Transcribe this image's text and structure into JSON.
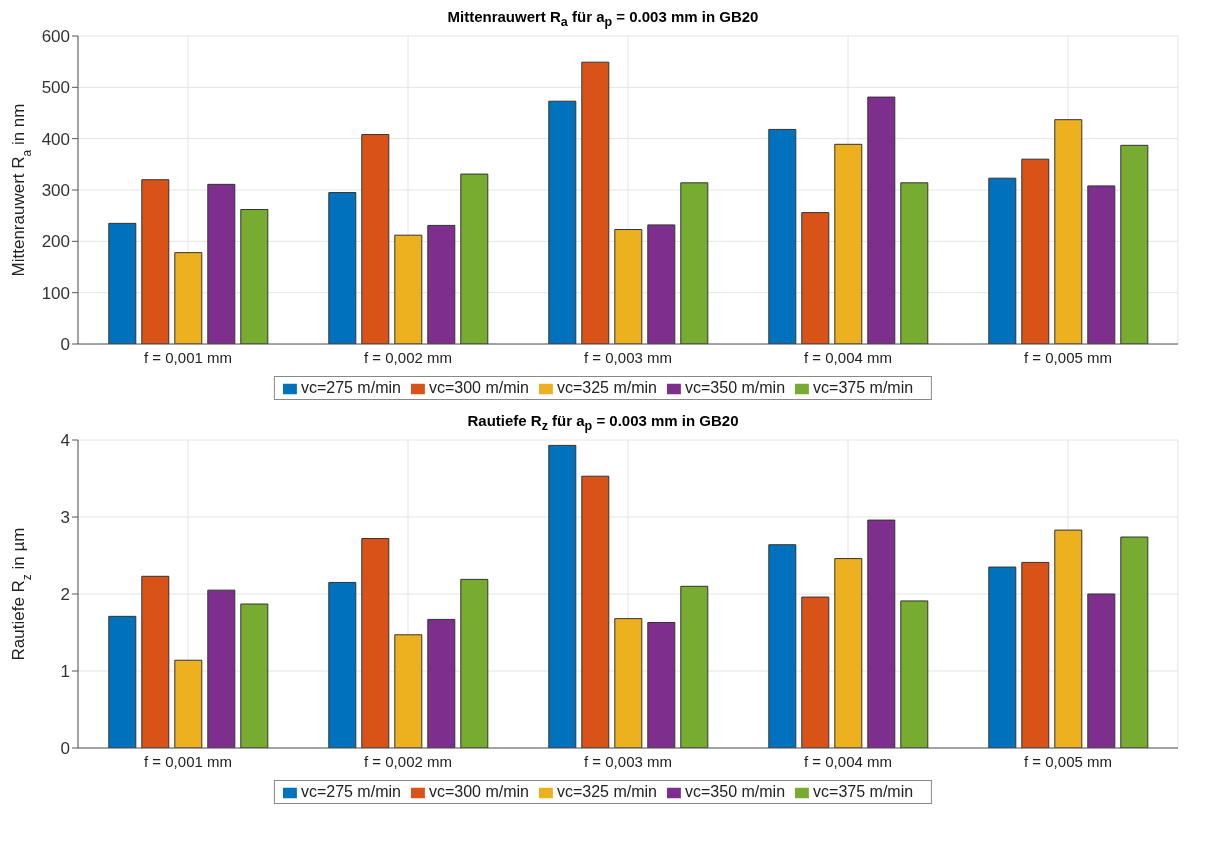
{
  "chart_data": [
    {
      "type": "bar",
      "title": "Mittenrauwert R$_{a}$ für a$_{p}$ = 0.003 mm in GB20",
      "ylabel": "Mittenrauwert R$_{a}$ in nm",
      "categories": [
        "f = 0,001 mm",
        "f = 0,002 mm",
        "f = 0,003 mm",
        "f = 0,004 mm",
        "f = 0,005 mm"
      ],
      "ylim": [
        0,
        600
      ],
      "yticks": [
        0,
        100,
        200,
        300,
        400,
        500,
        600
      ],
      "grid": true,
      "legend": "bottom",
      "series": [
        {
          "name": "vc=275 m/min",
          "color": "#0072bd",
          "values": [
            235,
            295,
            473,
            418,
            323
          ]
        },
        {
          "name": "vc=300 m/min",
          "color": "#d95319",
          "values": [
            320,
            408,
            549,
            256,
            360
          ]
        },
        {
          "name": "vc=325 m/min",
          "color": "#edb120",
          "values": [
            178,
            212,
            223,
            389,
            437
          ]
        },
        {
          "name": "vc=350 m/min",
          "color": "#7e2f8e",
          "values": [
            311,
            231,
            232,
            481,
            308
          ]
        },
        {
          "name": "vc=375 m/min",
          "color": "#77ac30",
          "values": [
            262,
            331,
            314,
            314,
            387
          ]
        }
      ]
    },
    {
      "type": "bar",
      "title": "Rautiefe R$_{z}$ für a$_{p}$ = 0.003 mm in GB20",
      "ylabel": "Rautiefe R$_{z}$ in µm",
      "categories": [
        "f = 0,001 mm",
        "f = 0,002 mm",
        "f = 0,003 mm",
        "f = 0,004 mm",
        "f = 0,005 mm"
      ],
      "ylim": [
        0,
        4
      ],
      "yticks": [
        0,
        1,
        2,
        3,
        4
      ],
      "grid": true,
      "legend": "bottom",
      "series": [
        {
          "name": "vc=275 m/min",
          "color": "#0072bd",
          "values": [
            1.71,
            2.15,
            3.93,
            2.64,
            2.35
          ]
        },
        {
          "name": "vc=300 m/min",
          "color": "#d95319",
          "values": [
            2.23,
            2.72,
            3.53,
            1.96,
            2.41
          ]
        },
        {
          "name": "vc=325 m/min",
          "color": "#edb120",
          "values": [
            1.14,
            1.47,
            1.68,
            2.46,
            2.83
          ]
        },
        {
          "name": "vc=350 m/min",
          "color": "#7e2f8e",
          "values": [
            2.05,
            1.67,
            1.63,
            2.96,
            2.0
          ]
        },
        {
          "name": "vc=375 m/min",
          "color": "#77ac30",
          "values": [
            1.87,
            2.19,
            2.1,
            1.91,
            2.74
          ]
        }
      ]
    }
  ]
}
